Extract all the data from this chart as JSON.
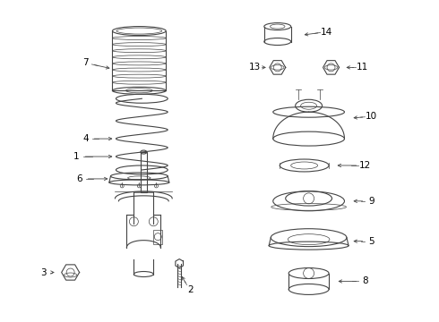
{
  "bg_color": "#ffffff",
  "line_color": "#444444",
  "label_color": "#000000",
  "fig_width": 4.9,
  "fig_height": 3.6,
  "dpi": 100
}
